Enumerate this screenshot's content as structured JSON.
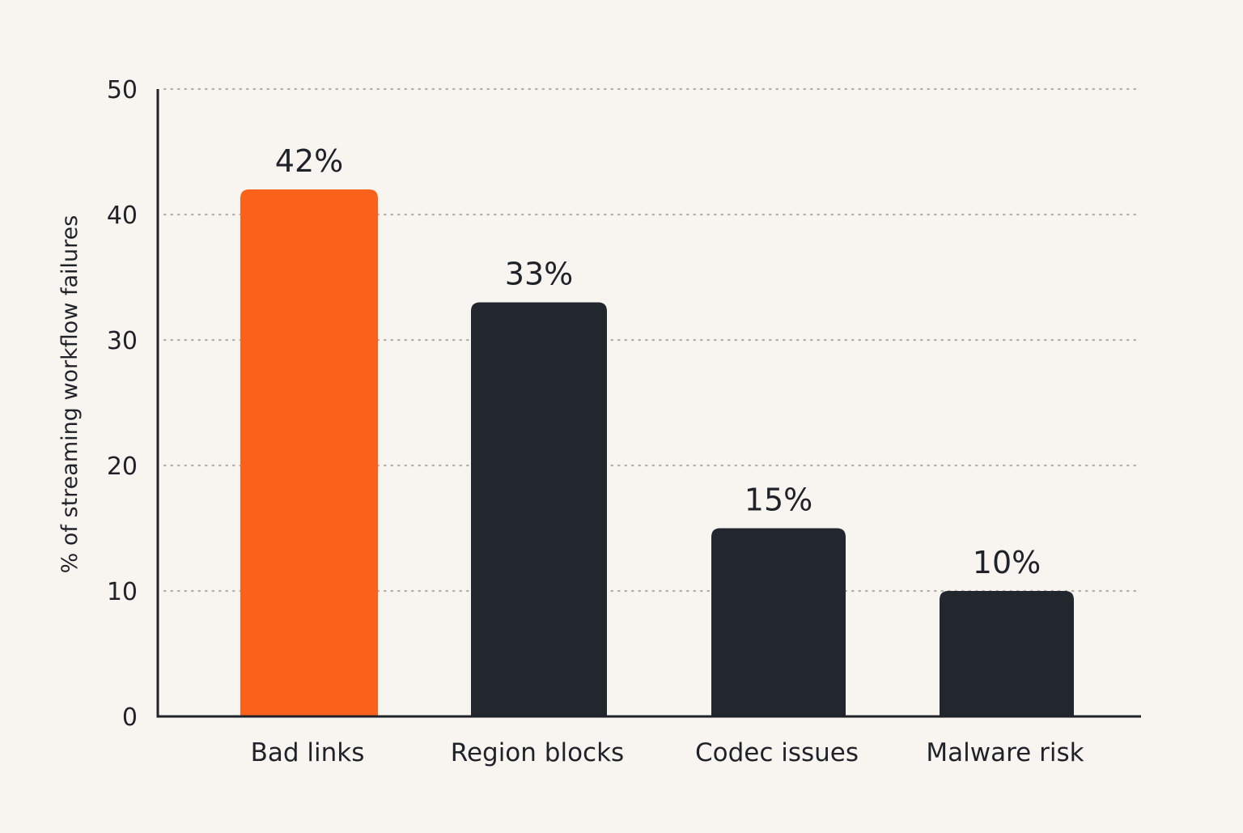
{
  "colors": {
    "background": "#f8f5f0",
    "highlight": "#fa621c",
    "bar": "#22272e",
    "text": "#1f2329",
    "grid": "#b3b0aa",
    "axis": "#1f2329"
  },
  "chart_data": {
    "type": "bar",
    "title": "",
    "xlabel": "",
    "ylabel": "% of streaming workflow failures",
    "categories": [
      "Bad links",
      "Region blocks",
      "Codec issues",
      "Malware risk"
    ],
    "values": [
      42,
      33,
      15,
      10
    ],
    "value_labels": [
      "42%",
      "33%",
      "15%",
      "10%"
    ],
    "highlighted_category": "Bad links",
    "ylim": [
      0,
      50
    ],
    "yticks": [
      0,
      10,
      20,
      30,
      40,
      50
    ],
    "ytick_labels": [
      "0",
      "10",
      "20",
      "30",
      "40",
      "50"
    ],
    "grid": "horizontal dotted",
    "legend": "none"
  }
}
